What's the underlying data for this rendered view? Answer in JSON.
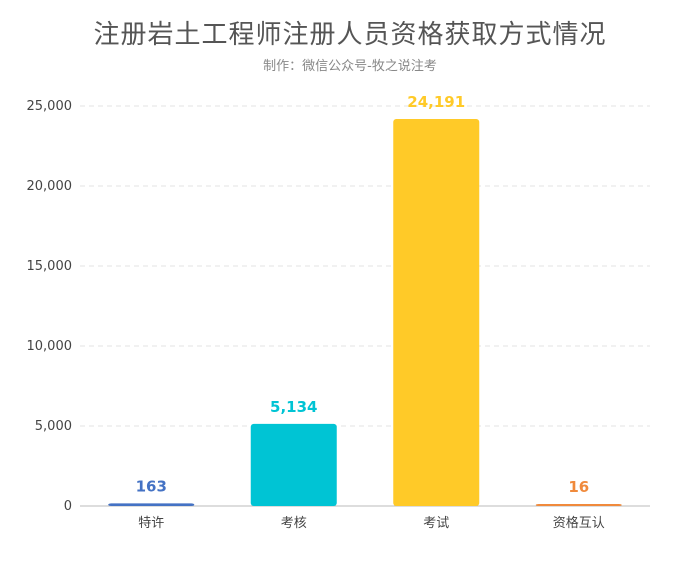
{
  "chart_data": {
    "type": "bar",
    "title": "注册岩土工程师注册人员资格获取方式情况",
    "subtitle": "制作：微信公众号-牧之说注考",
    "categories": [
      "特许",
      "考核",
      "考试",
      "资格互认"
    ],
    "values": [
      163,
      5134,
      24191,
      16
    ],
    "value_labels": [
      "163",
      "5,134",
      "24,191",
      "16"
    ],
    "colors": [
      "#4472C4",
      "#00C4D4",
      "#FFCA28",
      "#F08A3C"
    ],
    "ylim": [
      0,
      25000
    ],
    "yticks": [
      0,
      5000,
      10000,
      15000,
      20000,
      25000
    ],
    "ytick_labels": [
      "0",
      "5,000",
      "10,000",
      "15,000",
      "20,000",
      "25,000"
    ],
    "grid": true,
    "legend": "none"
  }
}
